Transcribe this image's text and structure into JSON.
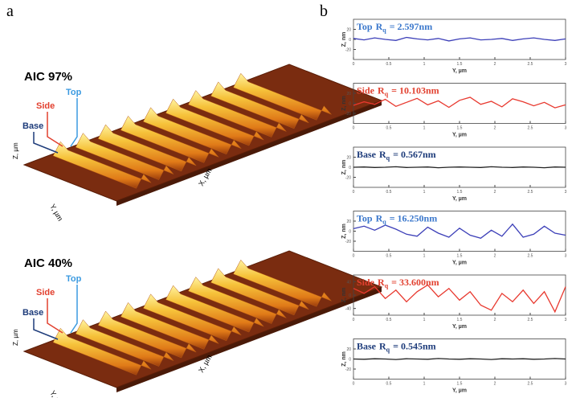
{
  "panel_a": {
    "label": "a",
    "images": [
      {
        "title": "AIC 97%",
        "markers": [
          "Base",
          "Side",
          "Top"
        ],
        "x_label": "X, µm",
        "y_label": "Y, µm",
        "z_label": "Z, µm"
      },
      {
        "title": "AIC 40%",
        "markers": [
          "Base",
          "Side",
          "Top"
        ],
        "x_label": "X, µm",
        "y_label": "Y, µm",
        "z_label": "Z, µm"
      }
    ]
  },
  "panel_b": {
    "label": "b",
    "x_label": "Y, µm",
    "y_label": "Z, nm",
    "xlim": [
      0,
      3
    ],
    "xticks": [
      0,
      0.5,
      1,
      1.5,
      2,
      2.5,
      3
    ],
    "x": [
      0,
      0.15,
      0.3,
      0.45,
      0.6,
      0.75,
      0.9,
      1.05,
      1.2,
      1.35,
      1.5,
      1.65,
      1.8,
      1.95,
      2.1,
      2.25,
      2.4,
      2.55,
      2.7,
      2.85,
      3
    ],
    "plots": [
      {
        "name": "Top",
        "symbol": "R",
        "subscript": "q",
        "value_text": "= 2.597nm",
        "label_color": "#3b78cc",
        "color": "#3c3fb8",
        "ylim": [
          -40,
          40
        ],
        "yticks": [
          -20,
          0,
          20
        ],
        "values": [
          2,
          -1,
          3,
          0,
          -2,
          4,
          1,
          -1,
          2,
          -3,
          1,
          3,
          -1,
          0,
          2,
          -2,
          1,
          3,
          0,
          -2,
          1
        ]
      },
      {
        "name": "Side",
        "symbol": "R",
        "subscript": "q",
        "value_text": "= 10.103nm",
        "label_color": "#e2402f",
        "color": "#e8392f",
        "ylim": [
          -40,
          40
        ],
        "yticks": [
          -20,
          0,
          20
        ],
        "values": [
          -4,
          3,
          -2,
          8,
          -6,
          2,
          10,
          -3,
          5,
          -8,
          6,
          12,
          -2,
          4,
          -7,
          9,
          3,
          -5,
          2,
          -9,
          -3
        ]
      },
      {
        "name": "Base",
        "symbol": "R",
        "subscript": "q",
        "value_text": "= 0.567nm",
        "label_color": "#1d3b7a",
        "color": "#222222",
        "ylim": [
          -40,
          40
        ],
        "yticks": [
          -20,
          0,
          20
        ],
        "values": [
          0,
          0.5,
          -0.5,
          0,
          1,
          -0.5,
          0,
          0.5,
          -1,
          0,
          0.5,
          0,
          -0.5,
          1,
          0,
          -0.5,
          0.5,
          0,
          -1,
          0.5,
          0
        ]
      },
      {
        "name": "Top",
        "symbol": "R",
        "subscript": "q",
        "value_text": "= 16.250nm",
        "label_color": "#3b78cc",
        "color": "#3c3fb8",
        "ylim": [
          -40,
          40
        ],
        "yticks": [
          -20,
          0,
          20
        ],
        "values": [
          5,
          10,
          2,
          12,
          4,
          -6,
          -10,
          8,
          -4,
          -12,
          6,
          -8,
          -14,
          2,
          -10,
          14,
          -12,
          -6,
          10,
          -4,
          -8
        ]
      },
      {
        "name": "Side",
        "symbol": "R",
        "subscript": "q",
        "value_text": "= 33.600nm",
        "label_color": "#e2402f",
        "color": "#e8392f",
        "ylim": [
          -60,
          60
        ],
        "yticks": [
          -40,
          0,
          40
        ],
        "values": [
          20,
          5,
          25,
          -10,
          15,
          -20,
          10,
          30,
          -5,
          20,
          -15,
          10,
          -30,
          -45,
          5,
          -20,
          15,
          -25,
          10,
          -50,
          25
        ]
      },
      {
        "name": "Base",
        "symbol": "R",
        "subscript": "q",
        "value_text": "= 0.545nm",
        "label_color": "#1d3b7a",
        "color": "#222222",
        "ylim": [
          -40,
          40
        ],
        "yticks": [
          -20,
          0,
          20
        ],
        "values": [
          0,
          -0.5,
          0.5,
          0,
          -1,
          0.5,
          0,
          -0.5,
          1,
          0,
          -0.5,
          0.5,
          0,
          -1,
          0.5,
          0,
          0.5,
          -0.5,
          0,
          1,
          0
        ]
      }
    ]
  }
}
